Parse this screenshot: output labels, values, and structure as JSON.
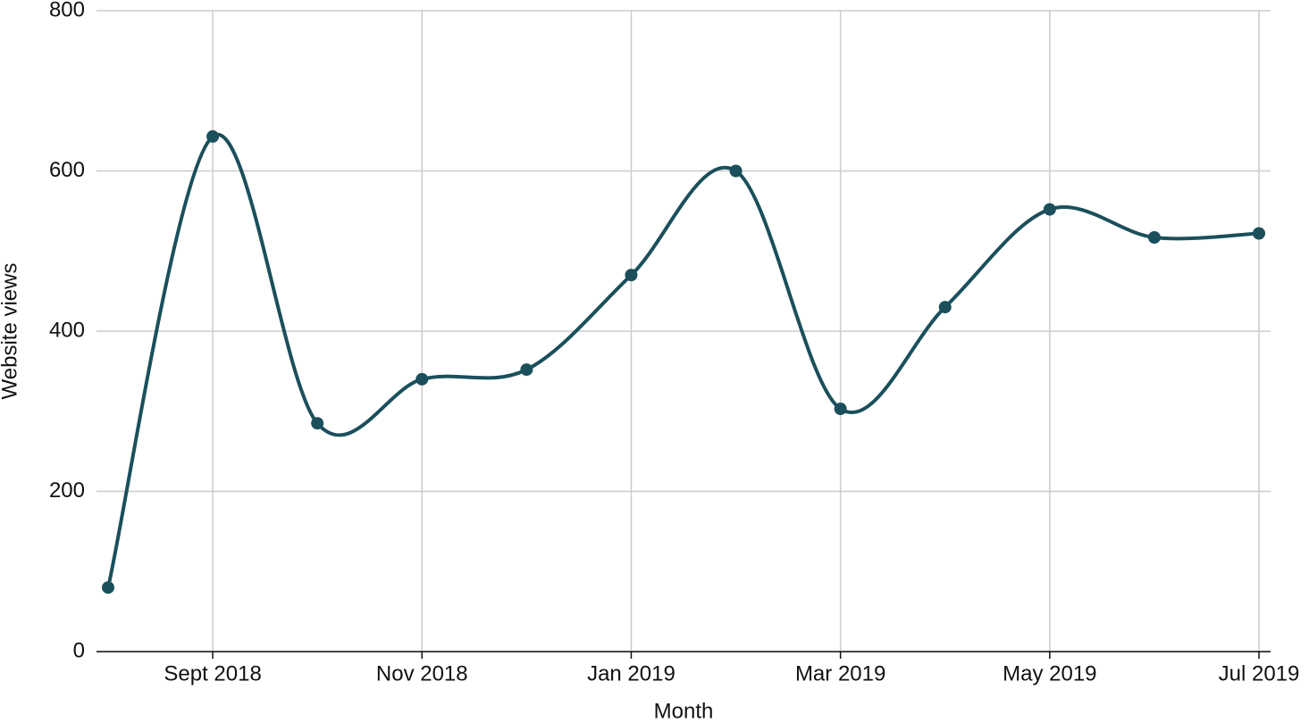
{
  "chart_data": {
    "type": "line",
    "x_label": "Month",
    "y_label": "Website views",
    "categories": [
      null,
      "Sept 2018",
      null,
      "Nov 2018",
      null,
      "Jan 2019",
      null,
      "Mar 2019",
      null,
      "May 2019",
      null,
      "Jul 2019"
    ],
    "series": [
      {
        "name": "Website views",
        "color": "#1b4f5c",
        "values": [
          80,
          643,
          285,
          340,
          352,
          470,
          600,
          303,
          430,
          552,
          517,
          522
        ]
      }
    ],
    "ylim": [
      0,
      800
    ],
    "yticks": [
      0,
      200,
      400,
      600,
      800
    ],
    "grid": true,
    "smooth": true
  }
}
